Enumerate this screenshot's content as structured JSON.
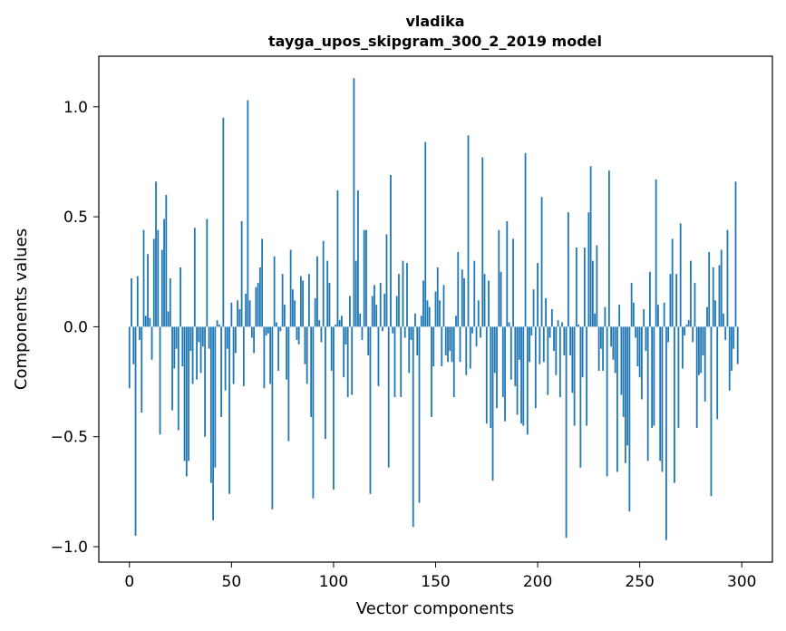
{
  "chart_data": {
    "type": "bar",
    "title": [
      "vladika",
      "tayga_upos_skipgram_300_2_2019 model"
    ],
    "xlabel": "Vector components",
    "ylabel": "Components values",
    "xlim": [
      -15,
      315
    ],
    "ylim": [
      -1.07,
      1.23
    ],
    "xticks": [
      0,
      50,
      100,
      150,
      200,
      250,
      300
    ],
    "xtick_labels": [
      "0",
      "50",
      "100",
      "150",
      "200",
      "250",
      "300"
    ],
    "yticks": [
      -1.0,
      -0.5,
      0.0,
      0.5,
      1.0
    ],
    "ytick_labels": [
      "−1.0",
      "−0.5",
      "0.0",
      "0.5",
      "1.0"
    ],
    "bar_color": "#1f77b4",
    "values": [
      -0.28,
      0.22,
      -0.17,
      -0.95,
      0.23,
      -0.06,
      -0.39,
      0.44,
      0.05,
      0.33,
      0.04,
      -0.15,
      0.4,
      0.66,
      0.44,
      -0.49,
      0.35,
      0.49,
      0.6,
      0.07,
      0.22,
      -0.38,
      -0.19,
      -0.1,
      -0.47,
      0.27,
      -0.18,
      -0.61,
      -0.68,
      -0.61,
      -0.11,
      -0.26,
      0.45,
      -0.24,
      -0.07,
      -0.21,
      -0.09,
      -0.5,
      0.49,
      -0.1,
      -0.71,
      -0.88,
      -0.64,
      0.03,
      0.01,
      -0.41,
      0.95,
      -0.29,
      -0.1,
      -0.76,
      0.11,
      -0.26,
      -0.12,
      0.12,
      0.08,
      0.48,
      -0.27,
      0.15,
      1.03,
      0.12,
      -0.05,
      -0.12,
      0.18,
      0.2,
      0.27,
      0.4,
      -0.28,
      -0.04,
      -0.03,
      -0.26,
      -0.83,
      0.32,
      0.02,
      -0.2,
      -0.02,
      0.24,
      0.1,
      -0.24,
      -0.52,
      0.35,
      0.17,
      0.12,
      -0.06,
      -0.08,
      0.23,
      0.21,
      -0.17,
      -0.26,
      0.24,
      -0.41,
      -0.78,
      0.13,
      0.32,
      0.03,
      -0.07,
      0.39,
      -0.51,
      0.3,
      0.2,
      -0.2,
      -0.74,
      0.01,
      0.62,
      0.03,
      0.05,
      -0.23,
      -0.08,
      -0.32,
      0.14,
      -0.31,
      1.13,
      0.3,
      0.62,
      0.06,
      -0.06,
      0.44,
      0.44,
      -0.13,
      -0.76,
      0.14,
      0.19,
      0.1,
      -0.27,
      0.2,
      -0.02,
      0.15,
      0.42,
      -0.64,
      0.69,
      -0.03,
      -0.32,
      0.14,
      0.24,
      -0.32,
      0.3,
      -0.05,
      0.29,
      -0.21,
      -0.06,
      -0.91,
      0.06,
      -0.13,
      -0.8,
      0.05,
      0.21,
      0.84,
      0.12,
      0.09,
      -0.41,
      -0.18,
      0.16,
      0.27,
      0.12,
      -0.18,
      0.19,
      -0.13,
      -0.16,
      -0.11,
      -0.16,
      -0.32,
      0.05,
      0.34,
      -0.16,
      0.26,
      0.22,
      -0.22,
      0.87,
      -0.19,
      -0.03,
      0.3,
      -0.09,
      0.12,
      -0.05,
      0.77,
      0.24,
      -0.44,
      0.21,
      -0.46,
      -0.7,
      -0.21,
      -0.37,
      0.44,
      0.25,
      -0.32,
      -0.43,
      0.48,
      0.02,
      -0.24,
      0.4,
      -0.27,
      -0.4,
      -0.15,
      -0.44,
      -0.45,
      0.79,
      -0.49,
      -0.16,
      -0.04,
      0.17,
      -0.37,
      0.29,
      -0.17,
      0.59,
      -0.16,
      0.13,
      -0.31,
      -0.05,
      0.08,
      -0.11,
      -0.22,
      0.03,
      -0.32,
      0.02,
      -0.13,
      -0.96,
      0.52,
      -0.13,
      -0.3,
      -0.45,
      0.36,
      0.01,
      -0.64,
      -0.23,
      0.36,
      -0.45,
      0.52,
      0.73,
      0.3,
      0.06,
      0.37,
      -0.2,
      -0.1,
      -0.2,
      0.09,
      -0.68,
      0.71,
      -0.09,
      -0.15,
      -0.21,
      -0.66,
      0.1,
      -0.31,
      -0.41,
      -0.62,
      -0.54,
      -0.84,
      0.2,
      0.11,
      -0.05,
      -0.18,
      -0.23,
      -0.33,
      0.08,
      -0.11,
      -0.61,
      0.25,
      -0.46,
      -0.45,
      0.67,
      0.1,
      -0.61,
      -0.66,
      0.11,
      -0.97,
      -0.07,
      0.24,
      0.4,
      -0.71,
      0.24,
      -0.46,
      0.47,
      -0.19,
      -0.04,
      0.01,
      0.03,
      0.3,
      -0.07,
      0.2,
      -0.46,
      -0.22,
      -0.21,
      -0.13,
      -0.34,
      0.09,
      0.34,
      -0.77,
      0.27,
      0.12,
      -0.42,
      0.28,
      0.35,
      0.06,
      -0.06,
      0.44,
      -0.29,
      -0.2,
      -0.1,
      0.66,
      -0.17
    ]
  }
}
